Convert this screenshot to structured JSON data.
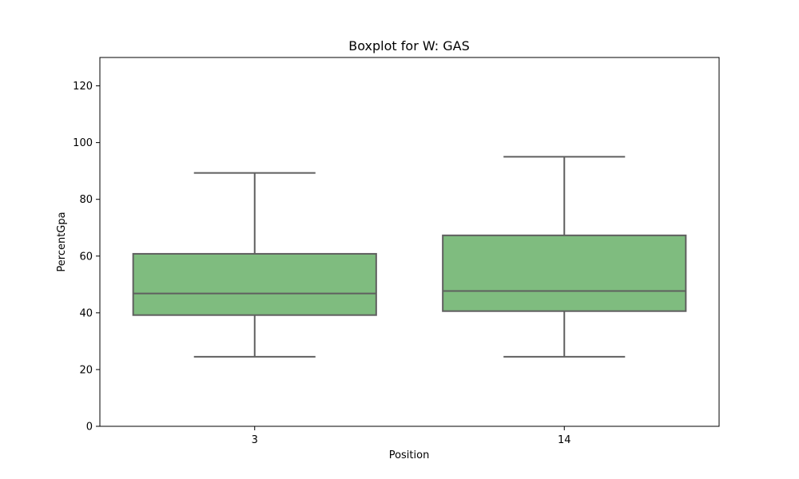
{
  "chart_data": {
    "type": "box",
    "title": "Boxplot for W: GAS",
    "xlabel": "Position",
    "ylabel": "PercentGpa",
    "ylim": [
      0,
      130
    ],
    "yticks": [
      0,
      20,
      40,
      60,
      80,
      100,
      120
    ],
    "categories": [
      "3",
      "14"
    ],
    "boxes": [
      {
        "category": "3",
        "whisker_low": 24.5,
        "q1": 39.2,
        "median": 46.8,
        "q3": 60.8,
        "whisker_high": 89.3
      },
      {
        "category": "14",
        "whisker_low": 24.5,
        "q1": 40.6,
        "median": 47.7,
        "q3": 67.3,
        "whisker_high": 95.0
      }
    ],
    "colors": {
      "box_fill": "#7fbc7f",
      "box_line": "#5f5f5f"
    },
    "grid": false
  }
}
